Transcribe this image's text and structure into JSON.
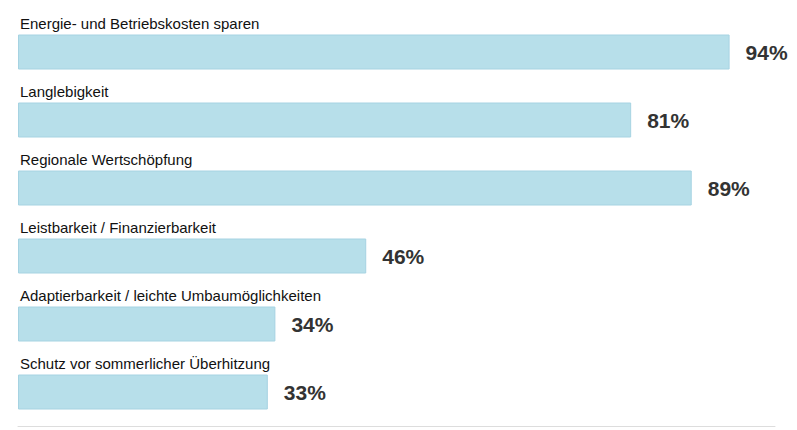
{
  "chart_data": {
    "type": "bar",
    "orientation": "horizontal",
    "categories": [
      "Energie- und Betriebskosten sparen",
      "Langlebigkeit",
      "Regionale Wertschöpfung",
      "Leistbarkeit / Finanzierbarkeit",
      "Adaptierbarkeit / leichte Umbaumöglichkeiten",
      "Schutz vor sommerlicher Überhitzung"
    ],
    "values": [
      94,
      81,
      89,
      46,
      34,
      33
    ],
    "value_labels": [
      "94%",
      "81%",
      "89%",
      "46%",
      "34%",
      "33%"
    ],
    "color": "#b7dfea",
    "xlim": [
      0,
      100
    ],
    "grid": false,
    "tick_labels": false,
    "data_labels": true
  }
}
